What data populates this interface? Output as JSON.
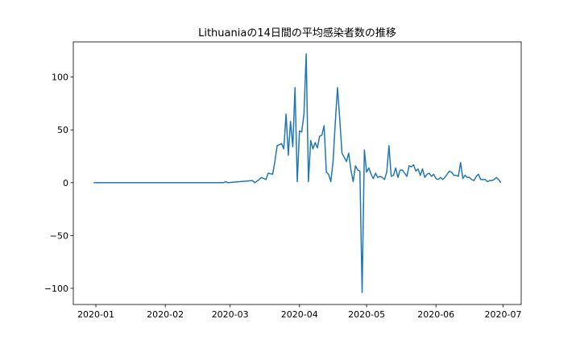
{
  "chart_data": {
    "type": "line",
    "title": "Lithuaniaの14日間の平均感染者数の推移",
    "x": [
      -1,
      57,
      58,
      59,
      70,
      71,
      73,
      74,
      76,
      77,
      79,
      80,
      81,
      83,
      84,
      85,
      86,
      87,
      88,
      89,
      90,
      91,
      92,
      93,
      94,
      95,
      96,
      97,
      98,
      99,
      100,
      101,
      102,
      103,
      104,
      105,
      106,
      107,
      108,
      109,
      110,
      111,
      112,
      113,
      114,
      115,
      116,
      117,
      118,
      119,
      120,
      121,
      122,
      123,
      124,
      125,
      126,
      127,
      128,
      129,
      130,
      131,
      132,
      133,
      134,
      135,
      136,
      137,
      138,
      139,
      140,
      141,
      142,
      143,
      144,
      145,
      146,
      147,
      148,
      149,
      150,
      151,
      152,
      153,
      154,
      155,
      156,
      157,
      158,
      159,
      160,
      161,
      162,
      163,
      164,
      165,
      166,
      167,
      168,
      169,
      170,
      171,
      172,
      173,
      174,
      175,
      176,
      177,
      178,
      179,
      180,
      181
    ],
    "series": [
      {
        "color": "#1f77b4",
        "values": [
          0,
          0,
          1,
          0,
          2,
          0,
          3,
          5,
          3,
          9,
          8,
          20,
          35,
          37,
          32,
          65,
          26,
          58,
          34,
          90,
          1,
          49,
          48,
          65,
          122,
          1,
          40,
          32,
          38,
          33,
          44,
          45,
          54,
          10,
          8,
          1,
          20,
          57,
          90,
          60,
          28,
          24,
          20,
          28,
          12,
          1,
          16,
          12,
          11,
          -104,
          31,
          10,
          14,
          8,
          4,
          9,
          5,
          6,
          5,
          3,
          10,
          35,
          6,
          7,
          14,
          5,
          12,
          12,
          9,
          6,
          16,
          15,
          17,
          11,
          13,
          7,
          13,
          5,
          8,
          9,
          6,
          8,
          4,
          3,
          5,
          3,
          5,
          8,
          11,
          10,
          7,
          7,
          6,
          19,
          4,
          7,
          5,
          5,
          3,
          2,
          6,
          8,
          3,
          3,
          3,
          1,
          2,
          2,
          3,
          5,
          3,
          0
        ]
      }
    ],
    "xlim": [
      -10.1,
      190.1
    ],
    "xticks": [
      {
        "value": 0,
        "label": "2020-01"
      },
      {
        "value": 31,
        "label": "2020-02"
      },
      {
        "value": 60,
        "label": "2020-03"
      },
      {
        "value": 91,
        "label": "2020-04"
      },
      {
        "value": 121,
        "label": "2020-05"
      },
      {
        "value": 152,
        "label": "2020-06"
      },
      {
        "value": 182,
        "label": "2020-07"
      }
    ],
    "ylim": [
      -115.3,
      133.3
    ],
    "yticks": [
      {
        "value": -100,
        "label": "−100"
      },
      {
        "value": -50,
        "label": "−50"
      },
      0,
      50,
      100
    ]
  }
}
